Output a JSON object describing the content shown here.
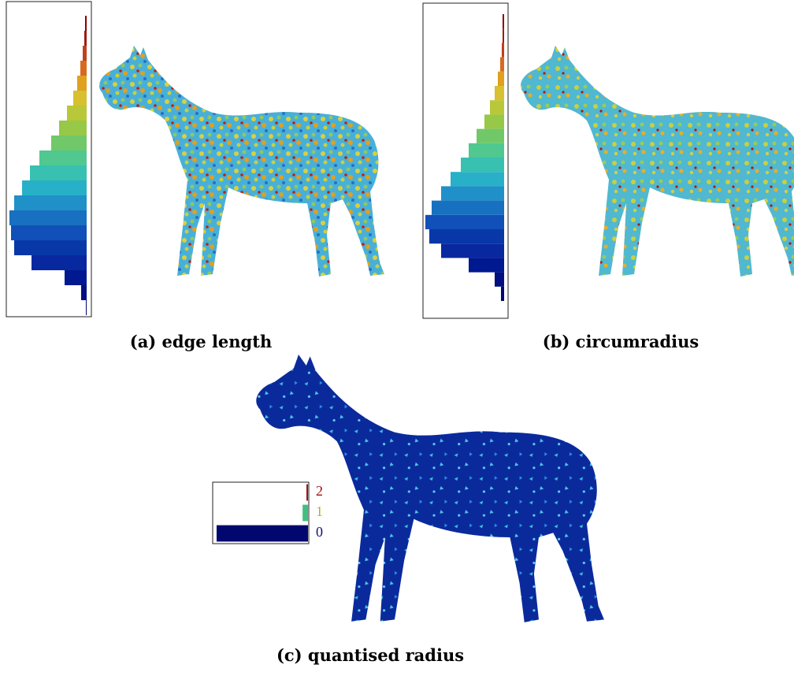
{
  "chart_data": [
    {
      "type": "bar",
      "orientation": "horizontal",
      "title": "(a) edge length",
      "categories": [
        null,
        null,
        null,
        null,
        null,
        null,
        null,
        null,
        null,
        null,
        null,
        null,
        null,
        null,
        null,
        null,
        null,
        null,
        null,
        null
      ],
      "values": [
        2,
        3,
        5,
        8,
        12,
        17,
        25,
        35,
        45,
        60,
        72,
        82,
        92,
        98,
        96,
        92,
        70,
        28,
        7,
        1
      ],
      "colors": [
        "#8b0000",
        "#a01a10",
        "#c0401a",
        "#d86a20",
        "#e0a020",
        "#d8c030",
        "#b8c838",
        "#98c848",
        "#70c868",
        "#50c890",
        "#38c0b0",
        "#28b0c8",
        "#2090c8",
        "#1870c0",
        "#1050b8",
        "#0838a8",
        "#0828a0",
        "#001890",
        "#001080",
        "#000870"
      ],
      "xlim": [
        0,
        100
      ]
    },
    {
      "type": "bar",
      "orientation": "horizontal",
      "title": "(b) circumradius",
      "categories": [
        null,
        null,
        null,
        null,
        null,
        null,
        null,
        null,
        null,
        null,
        null,
        null,
        null,
        null,
        null,
        null,
        null,
        null,
        null,
        null
      ],
      "values": [
        2,
        2,
        3,
        5,
        8,
        12,
        18,
        25,
        35,
        45,
        55,
        68,
        80,
        92,
        100,
        95,
        80,
        45,
        12,
        4
      ],
      "colors": [
        "#8b0000",
        "#a01a10",
        "#c0401a",
        "#d86a20",
        "#e0a020",
        "#d8c030",
        "#b8c838",
        "#98c848",
        "#70c868",
        "#50c890",
        "#38c0b0",
        "#28b0c8",
        "#2090c8",
        "#1870c0",
        "#1050b8",
        "#0838a8",
        "#0828a0",
        "#001890",
        "#001080",
        "#000870"
      ],
      "xlim": [
        0,
        100
      ]
    },
    {
      "type": "bar",
      "orientation": "horizontal",
      "title": "(c) quantised radius",
      "categories": [
        "2",
        "1",
        "0"
      ],
      "values": [
        2,
        7,
        118
      ],
      "colors": [
        "#a01010",
        "#40c080",
        "#000870"
      ],
      "label_colors": [
        "#a01010",
        "#b8b020",
        "#101070"
      ],
      "xlim": [
        0,
        120
      ]
    }
  ]
}
